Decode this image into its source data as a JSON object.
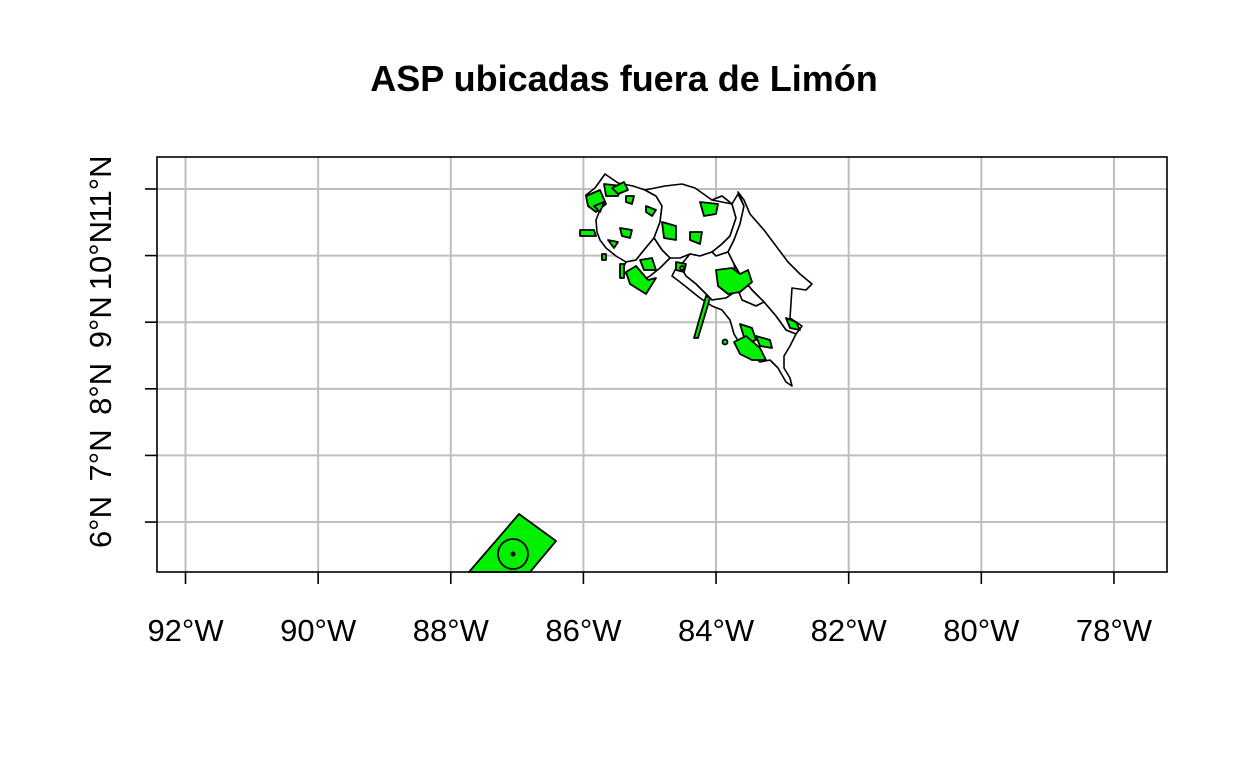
{
  "map": {
    "title": "ASP ubicadas fuera de Limón",
    "lon_range": [
      -92.43,
      -77.2
    ],
    "lat_range": [
      5.25,
      11.48
    ],
    "x_ticks": [
      {
        "value": -92,
        "label": "92°W"
      },
      {
        "value": -90,
        "label": "90°W"
      },
      {
        "value": -88,
        "label": "88°W"
      },
      {
        "value": -86,
        "label": "86°W"
      },
      {
        "value": -84,
        "label": "84°W"
      },
      {
        "value": -82,
        "label": "82°W"
      },
      {
        "value": -80,
        "label": "80°W"
      },
      {
        "value": -78,
        "label": "78°W"
      }
    ],
    "y_ticks": [
      {
        "value": 6,
        "label": "6°N"
      },
      {
        "value": 7,
        "label": "7°N"
      },
      {
        "value": 8,
        "label": "8°N"
      },
      {
        "value": 9,
        "label": "9°N"
      },
      {
        "value": 10,
        "label": "10°N"
      },
      {
        "value": 11,
        "label": "11°N"
      }
    ],
    "grid": true,
    "colors": {
      "asp_fill": "#00f000",
      "province_fill": "#ffffff",
      "grid": "#bebebe",
      "outline": "#000000"
    },
    "features": {
      "province": "Costa Rica province outlines",
      "asp": "Protected wild areas (ASP) outside Limón, including Isla del Coco marine area"
    }
  }
}
